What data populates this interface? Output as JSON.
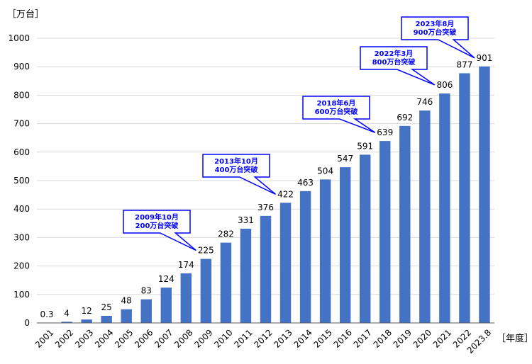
{
  "chart_data": {
    "type": "bar",
    "y_unit_label": "［万台］",
    "x_unit_label": "［年度］",
    "ylim": [
      0,
      1000
    ],
    "yticks": [
      0,
      100,
      200,
      300,
      400,
      500,
      600,
      700,
      800,
      900,
      1000
    ],
    "grid": true,
    "bar_color": "#4472c4",
    "categories": [
      "2001",
      "2002",
      "2003",
      "2004",
      "2005",
      "2006",
      "2007",
      "2008",
      "2009",
      "2010",
      "2011",
      "2012",
      "2013",
      "2014",
      "2015",
      "2016",
      "2017",
      "2018",
      "2019",
      "2020",
      "2021",
      "2022",
      "2023.8"
    ],
    "values": [
      0.3,
      4,
      12,
      25,
      48,
      83,
      124,
      174,
      225,
      282,
      331,
      376,
      422,
      463,
      504,
      547,
      591,
      639,
      692,
      746,
      806,
      877,
      901
    ],
    "data_labels": [
      "0.3",
      "4",
      "12",
      "25",
      "48",
      "83",
      "124",
      "174",
      "225",
      "282",
      "331",
      "376",
      "422",
      "463",
      "504",
      "547",
      "591",
      "639",
      "692",
      "746",
      "806",
      "877",
      "901"
    ],
    "annotations": [
      {
        "category": "2009",
        "lines": [
          "2009年10月",
          "200万台突破"
        ],
        "color": "#0000ff"
      },
      {
        "category": "2013",
        "lines": [
          "2013年10月",
          "400万台突破"
        ],
        "color": "#0000ff"
      },
      {
        "category": "2018",
        "lines": [
          "2018年6月",
          "600万台突破"
        ],
        "color": "#0000ff"
      },
      {
        "category": "2021",
        "lines": [
          "2022年3月",
          "800万台突破"
        ],
        "color": "#0000ff"
      },
      {
        "category": "2023.8",
        "lines": [
          "2023年8月",
          "900万台突破"
        ],
        "color": "#0000ff"
      }
    ]
  }
}
